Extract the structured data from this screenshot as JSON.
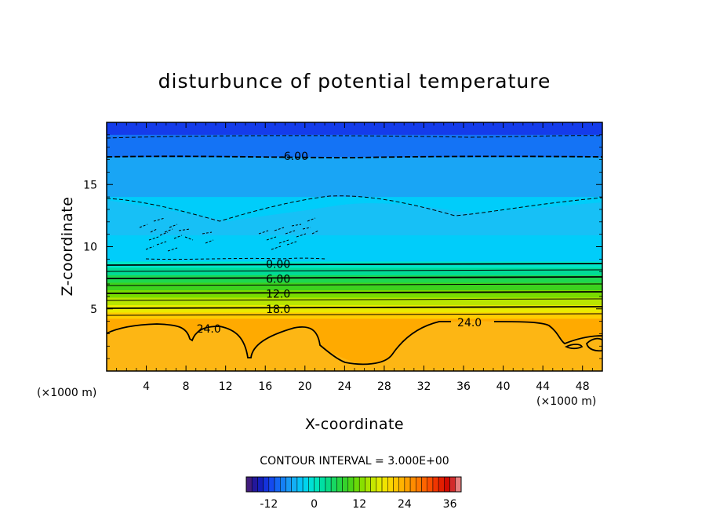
{
  "chart_data": {
    "type": "heatmap",
    "title": "disturbunce of potential temperature",
    "xlabel": "X-coordinate",
    "ylabel": "Z-coordinate",
    "x_unit_left": "(×1000 m)",
    "x_unit_right": "(×1000 m)",
    "xlim": [
      0,
      50
    ],
    "ylim": [
      0,
      20
    ],
    "x_ticks": [
      4,
      8,
      12,
      16,
      20,
      24,
      28,
      32,
      36,
      40,
      44,
      48
    ],
    "x_tick_labels": [
      "4",
      "8",
      "12",
      "16",
      "20",
      "24",
      "28",
      "32",
      "36",
      "40",
      "44",
      "48"
    ],
    "y_ticks": [
      5,
      10,
      15
    ],
    "y_tick_labels": [
      "5",
      "10",
      "15"
    ],
    "contour_interval_text": "CONTOUR INTERVAL = 3.000E+00",
    "contour_interval": 3.0,
    "field_bands": [
      {
        "z_from": 19.0,
        "z_to": 20.0,
        "value": -12
      },
      {
        "z_from": 17.2,
        "z_to": 19.0,
        "value": -9
      },
      {
        "z_from": 14.0,
        "z_to": 17.2,
        "value": -6
      },
      {
        "z_from": 8.8,
        "z_to": 14.0,
        "value": -3
      },
      {
        "z_from": 8.3,
        "z_to": 8.8,
        "value": 0
      },
      {
        "z_from": 7.7,
        "z_to": 8.3,
        "value": 3
      },
      {
        "z_from": 7.1,
        "z_to": 7.7,
        "value": 6
      },
      {
        "z_from": 6.5,
        "z_to": 7.1,
        "value": 9
      },
      {
        "z_from": 5.9,
        "z_to": 6.5,
        "value": 12
      },
      {
        "z_from": 5.3,
        "z_to": 5.9,
        "value": 15
      },
      {
        "z_from": 4.7,
        "z_to": 5.3,
        "value": 18
      },
      {
        "z_from": 4.2,
        "z_to": 4.7,
        "value": 21
      },
      {
        "z_from": 0.0,
        "z_to": 4.2,
        "value": 24
      }
    ],
    "contour_labels": [
      {
        "text": "-6.00",
        "x": 18.9,
        "z": 17.3
      },
      {
        "text": "0.00",
        "x": 17.3,
        "z": 8.6
      },
      {
        "text": "6.00",
        "x": 17.3,
        "z": 7.4
      },
      {
        "text": "12.0",
        "x": 17.3,
        "z": 6.2
      },
      {
        "text": "18.0",
        "x": 17.3,
        "z": 5.0
      },
      {
        "text": "24.0",
        "x": 10.3,
        "z": 3.4
      },
      {
        "text": "24.0",
        "x": 36.6,
        "z": 3.9
      }
    ],
    "colorbar": {
      "vmin": -18,
      "vmax": 39,
      "ticks": [
        -12,
        0,
        12,
        24,
        36
      ],
      "tick_labels": [
        "-12",
        "0",
        "12",
        "24",
        "36"
      ]
    },
    "grid": false,
    "legend": "none"
  }
}
